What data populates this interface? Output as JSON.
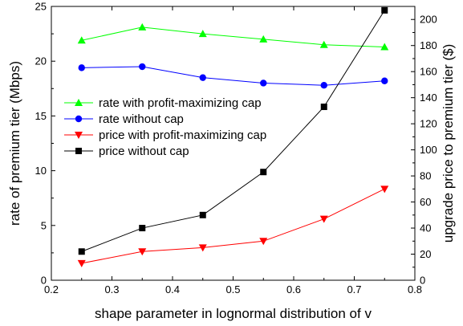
{
  "chart_data": {
    "type": "line",
    "title": "",
    "xlabel": "shape parameter in lognormal distribution of v",
    "ylabel_left": "rate of premium tier (Mbps)",
    "ylabel_right": "upgrade price to premium tier ($)",
    "xlim": [
      0.2,
      0.8
    ],
    "ylim_left": [
      0,
      25
    ],
    "ylim_right": [
      0,
      210
    ],
    "x_ticks": [
      "0.2",
      "0.3",
      "0.4",
      "0.5",
      "0.6",
      "0.7",
      "0.8"
    ],
    "y_left_ticks": [
      "0",
      "5",
      "10",
      "15",
      "20",
      "25"
    ],
    "y_right_ticks": [
      "0",
      "20",
      "40",
      "60",
      "80",
      "100",
      "120",
      "140",
      "160",
      "180",
      "200"
    ],
    "x": [
      0.25,
      0.35,
      0.45,
      0.55,
      0.65,
      0.75
    ],
    "grid": false,
    "legend_position": "center-left",
    "series": [
      {
        "name": "rate with profit-maximizing cap",
        "axis": "left",
        "color": "#00ff00",
        "marker": "triangle-up",
        "values": [
          21.9,
          23.1,
          22.5,
          22.0,
          21.5,
          21.3
        ]
      },
      {
        "name": "rate without cap",
        "axis": "left",
        "color": "#0000ff",
        "marker": "circle",
        "values": [
          19.4,
          19.5,
          18.5,
          18.0,
          17.8,
          18.2
        ]
      },
      {
        "name": "price with profit-maximizing cap",
        "axis": "right",
        "color": "#ff0000",
        "marker": "triangle-down",
        "values": [
          13,
          22,
          25,
          30,
          47,
          70
        ]
      },
      {
        "name": "price without cap",
        "axis": "right",
        "color": "#000000",
        "marker": "square",
        "values": [
          22,
          40,
          50,
          83,
          133,
          207
        ]
      }
    ]
  }
}
